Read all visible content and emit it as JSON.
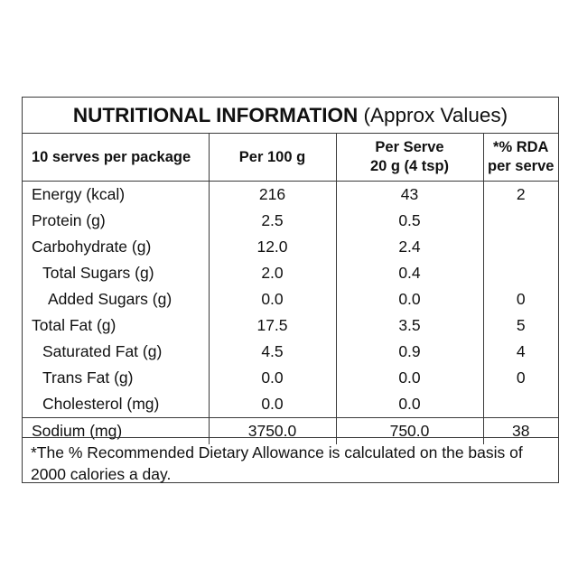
{
  "title": {
    "main": "NUTRITIONAL INFORMATION",
    "sub": "(Approx Values)"
  },
  "columns": {
    "c1": "10 serves per package",
    "c2": "Per 100 g",
    "c3_line1": "Per Serve",
    "c3_line2": "20 g (4 tsp)",
    "c4_line1": "*% RDA",
    "c4_line2": "per serve"
  },
  "rows": [
    {
      "label": "Energy (kcal)",
      "per100": "216",
      "perServe": "43",
      "rda": "2"
    },
    {
      "label": "Protein (g)",
      "per100": "2.5",
      "perServe": "0.5",
      "rda": ""
    },
    {
      "label": "Carbohydrate (g)",
      "per100": "12.0",
      "perServe": "2.4",
      "rda": ""
    },
    {
      "label": "Total Sugars (g)",
      "per100": "2.0",
      "perServe": "0.4",
      "rda": ""
    },
    {
      "label": "Added Sugars (g)",
      "per100": "0.0",
      "perServe": "0.0",
      "rda": "0"
    },
    {
      "label": "Total Fat (g)",
      "per100": "17.5",
      "perServe": "3.5",
      "rda": "5"
    },
    {
      "label": "Saturated Fat (g)",
      "per100": "4.5",
      "perServe": "0.9",
      "rda": "4"
    },
    {
      "label": "Trans Fat (g)",
      "per100": "0.0",
      "perServe": "0.0",
      "rda": "0"
    },
    {
      "label": "Cholesterol (mg)",
      "per100": "0.0",
      "perServe": "0.0",
      "rda": ""
    },
    {
      "label": "Sodium (mg)",
      "per100": "3750.0",
      "perServe": "750.0",
      "rda": "38"
    }
  ],
  "footnote": "*The % Recommended Dietary Allowance is calculated on the basis of 2000 calories a day."
}
